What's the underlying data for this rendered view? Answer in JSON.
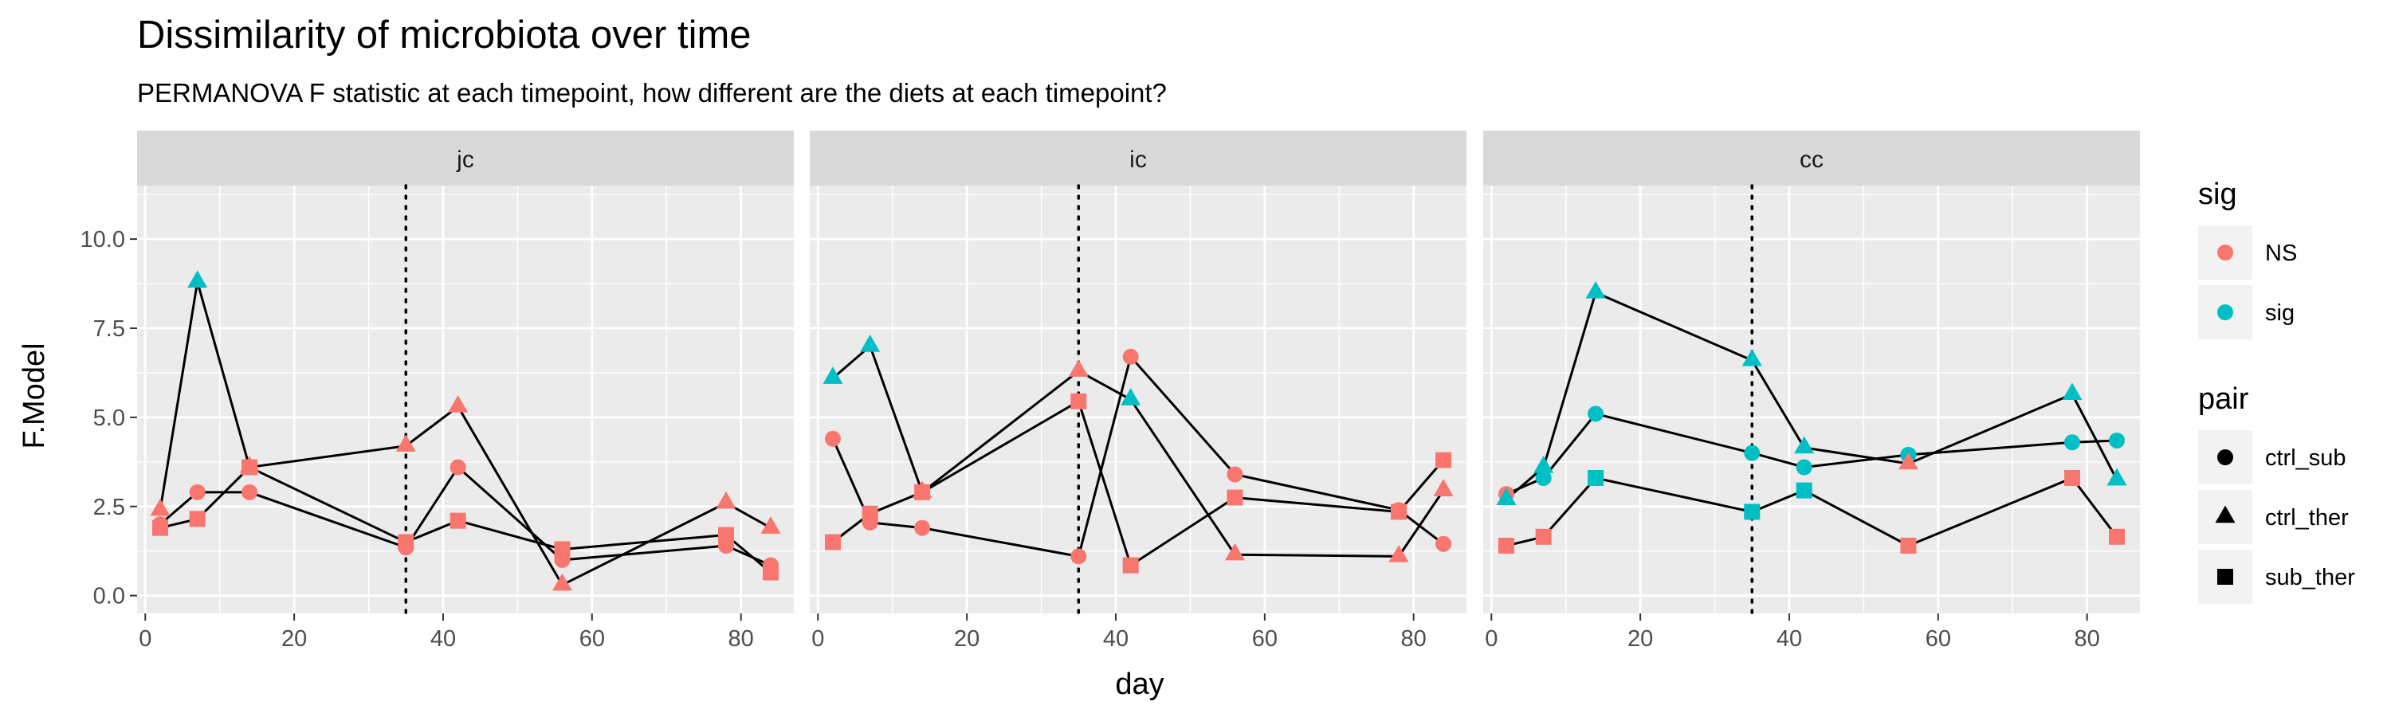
{
  "chart_data": {
    "type": "scatter",
    "title": "Dissimilarity of microbiota over time",
    "subtitle": "PERMANOVA F statistic at each timepoint, how different are the diets at each timepoint?",
    "xlabel": "day",
    "ylabel": "F.Model",
    "xlim": [
      -1.1,
      87.1
    ],
    "ylim": [
      -0.5,
      11.5
    ],
    "x_ticks": [
      0,
      20,
      40,
      60,
      80
    ],
    "y_ticks": [
      0.0,
      2.5,
      5.0,
      7.5,
      10.0
    ],
    "x_tick_labels": [
      "0",
      "20",
      "40",
      "60",
      "80"
    ],
    "y_tick_labels": [
      "0.0",
      "2.5",
      "5.0",
      "7.5",
      "10.0"
    ],
    "vline_day": 35,
    "grid": true,
    "legend_position": "right",
    "colors": {
      "NS": "#F8766D",
      "sig": "#00BFC4",
      "panel_bg": "#EBEBEB",
      "strip_bg": "#D9D9D9",
      "grid": "#FFFFFF"
    },
    "legends": [
      {
        "title": "sig",
        "kind": "color",
        "entries": [
          {
            "label": "NS",
            "key": "NS"
          },
          {
            "label": "sig",
            "key": "sig"
          }
        ]
      },
      {
        "title": "pair",
        "kind": "shape",
        "entries": [
          {
            "label": "ctrl_sub",
            "shape": "circle"
          },
          {
            "label": "ctrl_ther",
            "shape": "triangle"
          },
          {
            "label": "sub_ther",
            "shape": "square"
          }
        ]
      }
    ],
    "panels": [
      {
        "name": "jc",
        "series": [
          {
            "pair": "ctrl_sub",
            "shape": "circle",
            "points": [
              {
                "x": 2,
                "y": 2.0,
                "sig": "NS"
              },
              {
                "x": 7,
                "y": 2.9,
                "sig": "NS"
              },
              {
                "x": 14,
                "y": 2.9,
                "sig": "NS"
              },
              {
                "x": 35,
                "y": 1.35,
                "sig": "NS"
              },
              {
                "x": 42,
                "y": 3.6,
                "sig": "NS"
              },
              {
                "x": 56,
                "y": 1.0,
                "sig": "NS"
              },
              {
                "x": 78,
                "y": 1.4,
                "sig": "NS"
              },
              {
                "x": 84,
                "y": 0.85,
                "sig": "NS"
              }
            ]
          },
          {
            "pair": "ctrl_ther",
            "shape": "triangle",
            "points": [
              {
                "x": 2,
                "y": 2.4,
                "sig": "NS"
              },
              {
                "x": 7,
                "y": 8.8,
                "sig": "sig"
              },
              {
                "x": 14,
                "y": 3.6,
                "sig": "NS"
              },
              {
                "x": 35,
                "y": 4.2,
                "sig": "NS"
              },
              {
                "x": 42,
                "y": 5.3,
                "sig": "NS"
              },
              {
                "x": 56,
                "y": 0.3,
                "sig": "NS"
              },
              {
                "x": 78,
                "y": 2.6,
                "sig": "NS"
              },
              {
                "x": 84,
                "y": 1.9,
                "sig": "NS"
              }
            ]
          },
          {
            "pair": "sub_ther",
            "shape": "square",
            "points": [
              {
                "x": 2,
                "y": 1.9,
                "sig": "NS"
              },
              {
                "x": 7,
                "y": 2.15,
                "sig": "NS"
              },
              {
                "x": 14,
                "y": 3.6,
                "sig": "NS"
              },
              {
                "x": 35,
                "y": 1.5,
                "sig": "NS"
              },
              {
                "x": 42,
                "y": 2.1,
                "sig": "NS"
              },
              {
                "x": 56,
                "y": 1.3,
                "sig": "NS"
              },
              {
                "x": 78,
                "y": 1.7,
                "sig": "NS"
              },
              {
                "x": 84,
                "y": 0.65,
                "sig": "NS"
              }
            ]
          }
        ]
      },
      {
        "name": "ic",
        "series": [
          {
            "pair": "ctrl_sub",
            "shape": "circle",
            "points": [
              {
                "x": 2,
                "y": 4.4,
                "sig": "NS"
              },
              {
                "x": 7,
                "y": 2.05,
                "sig": "NS"
              },
              {
                "x": 14,
                "y": 1.9,
                "sig": "NS"
              },
              {
                "x": 35,
                "y": 1.1,
                "sig": "NS"
              },
              {
                "x": 42,
                "y": 6.7,
                "sig": "NS"
              },
              {
                "x": 56,
                "y": 3.4,
                "sig": "NS"
              },
              {
                "x": 78,
                "y": 2.4,
                "sig": "NS"
              },
              {
                "x": 84,
                "y": 1.45,
                "sig": "NS"
              }
            ]
          },
          {
            "pair": "ctrl_ther",
            "shape": "triangle",
            "points": [
              {
                "x": 2,
                "y": 6.1,
                "sig": "sig"
              },
              {
                "x": 7,
                "y": 7.0,
                "sig": "sig"
              },
              {
                "x": 14,
                "y": 2.9,
                "sig": "NS"
              },
              {
                "x": 35,
                "y": 6.3,
                "sig": "NS"
              },
              {
                "x": 42,
                "y": 5.5,
                "sig": "sig"
              },
              {
                "x": 56,
                "y": 1.15,
                "sig": "NS"
              },
              {
                "x": 78,
                "y": 1.1,
                "sig": "NS"
              },
              {
                "x": 84,
                "y": 2.95,
                "sig": "NS"
              }
            ]
          },
          {
            "pair": "sub_ther",
            "shape": "square",
            "points": [
              {
                "x": 2,
                "y": 1.5,
                "sig": "NS"
              },
              {
                "x": 7,
                "y": 2.3,
                "sig": "NS"
              },
              {
                "x": 14,
                "y": 2.9,
                "sig": "NS"
              },
              {
                "x": 35,
                "y": 5.45,
                "sig": "NS"
              },
              {
                "x": 42,
                "y": 0.85,
                "sig": "NS"
              },
              {
                "x": 56,
                "y": 2.75,
                "sig": "NS"
              },
              {
                "x": 78,
                "y": 2.35,
                "sig": "NS"
              },
              {
                "x": 84,
                "y": 3.8,
                "sig": "NS"
              }
            ]
          }
        ]
      },
      {
        "name": "cc",
        "series": [
          {
            "pair": "ctrl_sub",
            "shape": "circle",
            "points": [
              {
                "x": 2,
                "y": 2.85,
                "sig": "NS"
              },
              {
                "x": 7,
                "y": 3.3,
                "sig": "sig"
              },
              {
                "x": 14,
                "y": 5.1,
                "sig": "sig"
              },
              {
                "x": 35,
                "y": 4.0,
                "sig": "sig"
              },
              {
                "x": 42,
                "y": 3.6,
                "sig": "sig"
              },
              {
                "x": 56,
                "y": 3.95,
                "sig": "sig"
              },
              {
                "x": 78,
                "y": 4.3,
                "sig": "sig"
              },
              {
                "x": 84,
                "y": 4.35,
                "sig": "sig"
              }
            ]
          },
          {
            "pair": "ctrl_ther",
            "shape": "triangle",
            "points": [
              {
                "x": 2,
                "y": 2.7,
                "sig": "sig"
              },
              {
                "x": 7,
                "y": 3.6,
                "sig": "sig"
              },
              {
                "x": 14,
                "y": 8.5,
                "sig": "sig"
              },
              {
                "x": 35,
                "y": 6.6,
                "sig": "sig"
              },
              {
                "x": 42,
                "y": 4.15,
                "sig": "sig"
              },
              {
                "x": 56,
                "y": 3.7,
                "sig": "NS"
              },
              {
                "x": 78,
                "y": 5.65,
                "sig": "sig"
              },
              {
                "x": 84,
                "y": 3.25,
                "sig": "sig"
              }
            ]
          },
          {
            "pair": "sub_ther",
            "shape": "square",
            "points": [
              {
                "x": 2,
                "y": 1.4,
                "sig": "NS"
              },
              {
                "x": 7,
                "y": 1.65,
                "sig": "NS"
              },
              {
                "x": 14,
                "y": 3.3,
                "sig": "sig"
              },
              {
                "x": 35,
                "y": 2.35,
                "sig": "sig"
              },
              {
                "x": 42,
                "y": 2.95,
                "sig": "sig"
              },
              {
                "x": 56,
                "y": 1.4,
                "sig": "NS"
              },
              {
                "x": 78,
                "y": 3.3,
                "sig": "NS"
              },
              {
                "x": 84,
                "y": 1.65,
                "sig": "NS"
              }
            ]
          }
        ]
      }
    ]
  }
}
